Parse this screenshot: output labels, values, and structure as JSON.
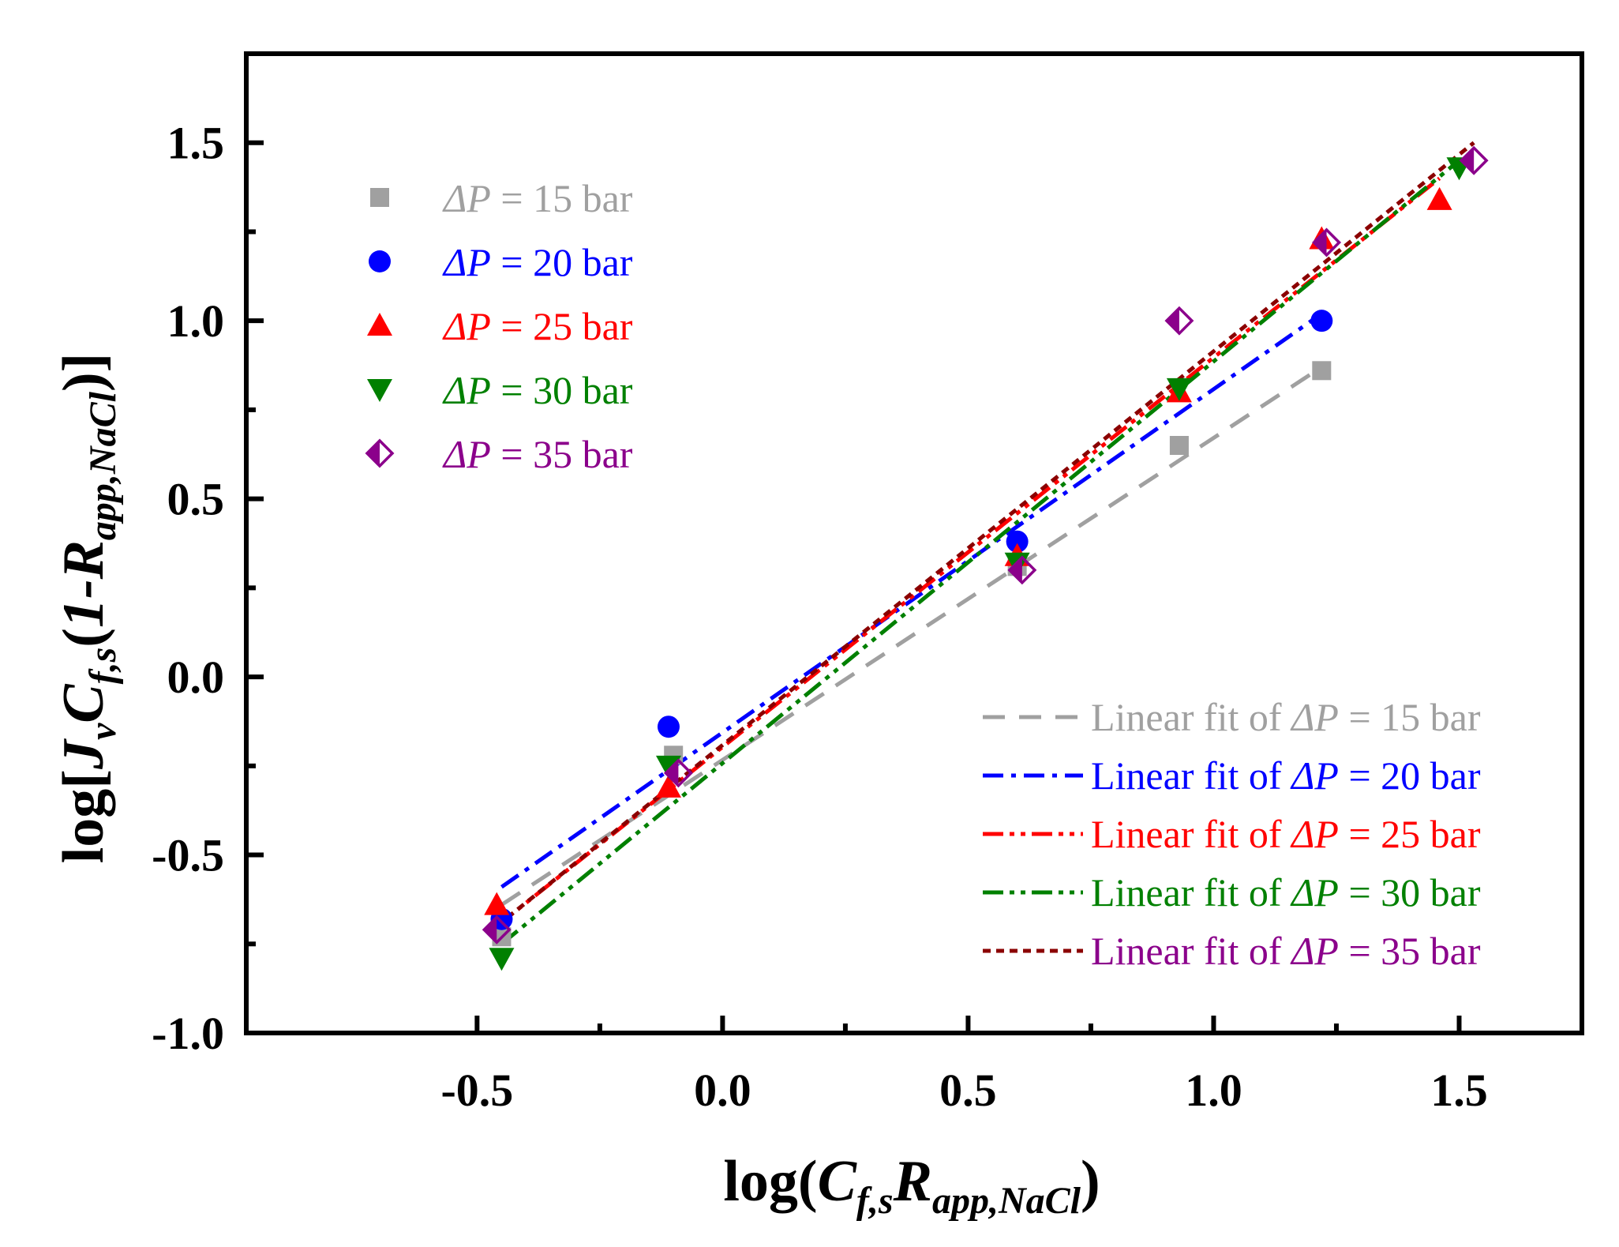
{
  "chart_data": {
    "type": "scatter",
    "title": "",
    "xlabel": "log(C_f,s R_app,NaCl)",
    "ylabel": "log[J_v C_f,s (1-R_app,NaCl)]",
    "xlim": [
      -0.97,
      1.75
    ],
    "ylim": [
      -1.0,
      1.75
    ],
    "x_ticks": [
      -0.5,
      0.0,
      0.5,
      1.0,
      1.5
    ],
    "x_tick_labels": [
      "-0.5",
      "0.0",
      "0.5",
      "1.0",
      "1.5"
    ],
    "y_ticks": [
      -1.0,
      -0.5,
      0.0,
      0.5,
      1.0,
      1.5
    ],
    "y_tick_labels": [
      "-1.0",
      "-0.5",
      "0.0",
      "0.5",
      "1.0",
      "1.5"
    ],
    "x_minor_ticks": [
      -0.25,
      0.25,
      0.75,
      1.25
    ],
    "y_minor_ticks": [
      -0.75,
      -0.25,
      0.25,
      0.75,
      1.25
    ],
    "xlabel_parts": {
      "pre": "log(",
      "c": "C",
      "c_sub": "f,s",
      "r": "R",
      "r_sub": "app,NaCl",
      "post": ")"
    },
    "ylabel_parts": {
      "pre": "log[",
      "j": "J",
      "j_sub": "v",
      "c": "C",
      "c_sub": "f,s",
      "mid": "(",
      "one_r": "1-R",
      "r_sub": "app,NaCl",
      "post": ")]"
    },
    "legend_markers_position": "top-left",
    "legend_fits_position": "bottom-right",
    "series": [
      {
        "name": "ΔP = 15 bar",
        "label_delta": "ΔP",
        "label_rest": " = 15 bar",
        "marker": "square",
        "color": "#A0A0A0",
        "points": [
          [
            -0.45,
            -0.73
          ],
          [
            -0.1,
            -0.22
          ],
          [
            0.6,
            0.31
          ],
          [
            0.93,
            0.65
          ],
          [
            1.22,
            0.86
          ]
        ],
        "fit_label_prefix": "Linear fit of ",
        "fit_color": "#A0A0A0",
        "fit_dash": "28,18",
        "fit": [
          [
            -0.45,
            -0.64
          ],
          [
            1.22,
            0.87
          ]
        ]
      },
      {
        "name": "ΔP = 20 bar",
        "label_delta": "ΔP",
        "label_rest": " = 20 bar",
        "marker": "circle",
        "color": "#0000FF",
        "points": [
          [
            -0.45,
            -0.68
          ],
          [
            -0.11,
            -0.14
          ],
          [
            0.6,
            0.38
          ],
          [
            1.22,
            1.0
          ]
        ],
        "fit_label_prefix": "Linear fit of ",
        "fit_color": "#0000FF",
        "fit_dash": "26,10,6,10",
        "fit": [
          [
            -0.45,
            -0.59
          ],
          [
            1.22,
            1.02
          ]
        ]
      },
      {
        "name": "ΔP = 25 bar",
        "label_delta": "ΔP",
        "label_rest": " = 25 bar",
        "marker": "triangle-up",
        "color": "#FF0000",
        "points": [
          [
            -0.46,
            -0.64
          ],
          [
            -0.11,
            -0.31
          ],
          [
            0.6,
            0.34
          ],
          [
            0.93,
            0.8
          ],
          [
            1.22,
            1.23
          ],
          [
            1.46,
            1.34
          ]
        ],
        "fit_label_prefix": "Linear fit of ",
        "fit_color": "#FF0000",
        "fit_dash": "26,8,6,8,6,8",
        "fit": [
          [
            -0.46,
            -0.7
          ],
          [
            1.46,
            1.4
          ]
        ]
      },
      {
        "name": "ΔP = 30 bar",
        "label_delta": "ΔP",
        "label_rest": " = 30 bar",
        "marker": "triangle-down",
        "color": "#008000",
        "points": [
          [
            -0.45,
            -0.79
          ],
          [
            -0.11,
            -0.25
          ],
          [
            0.6,
            0.32
          ],
          [
            0.93,
            0.81
          ],
          [
            1.5,
            1.43
          ]
        ],
        "fit_label_prefix": "Linear fit of ",
        "fit_color": "#008000",
        "fit_dash": "26,8,6,8,6,8",
        "fit": [
          [
            -0.45,
            -0.75
          ],
          [
            1.5,
            1.45
          ]
        ]
      },
      {
        "name": "ΔP = 35 bar",
        "label_delta": "ΔP",
        "label_rest": " = 35 bar",
        "marker": "half-diamond",
        "color": "#8B008B",
        "points": [
          [
            -0.46,
            -0.71
          ],
          [
            -0.09,
            -0.27
          ],
          [
            0.61,
            0.3
          ],
          [
            0.93,
            1.0
          ],
          [
            1.23,
            1.22
          ],
          [
            1.53,
            1.45
          ]
        ],
        "fit_label_prefix": "Linear fit of ",
        "fit_color": "#8B0000",
        "fit_text_color": "#8B008B",
        "fit_dash": "10,7",
        "fit": [
          [
            -0.46,
            -0.7
          ],
          [
            1.53,
            1.5
          ]
        ]
      }
    ]
  }
}
